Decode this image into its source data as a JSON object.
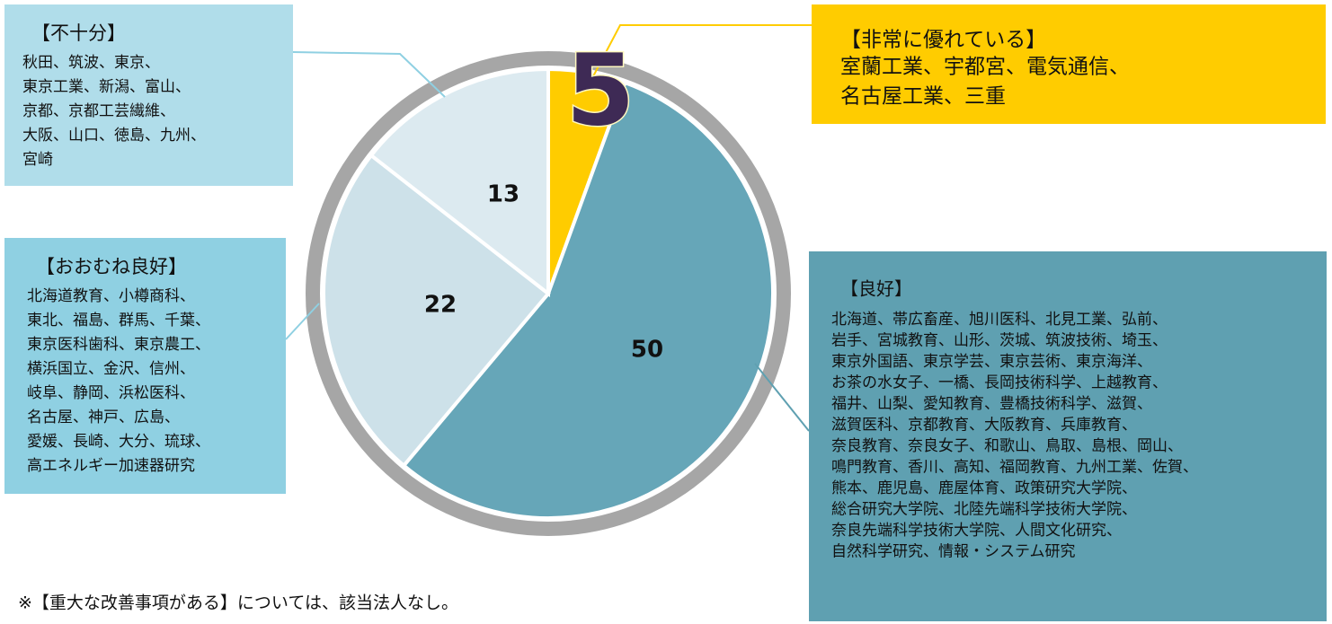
{
  "chart_data": {
    "type": "pie",
    "categories": [
      "【非常に優れている】",
      "【良好】",
      "【おおむね良好】",
      "【不十分】"
    ],
    "values": [
      5,
      50,
      22,
      13
    ],
    "colors": [
      "#FFCC00",
      "#66A6B8",
      "#CDE1E9",
      "#DCEAF0"
    ],
    "box_colors": [
      "#FFCC00",
      "#5FA0B1",
      "#8FD0E2",
      "#B0DDEA"
    ],
    "members": [
      [
        "室蘭工業、宇都宮、電気通信、",
        "名古屋工業、三重"
      ],
      [
        "北海道、帯広畜産、旭川医科、北見工業、弘前、",
        "岩手、宮城教育、山形、茨城、筑波技術、埼玉、",
        "東京外国語、東京学芸、東京芸術、東京海洋、",
        "お茶の水女子、一橋、長岡技術科学、上越教育、",
        "福井、山梨、愛知教育、豊橋技術科学、滋賀、",
        "滋賀医科、京都教育、大阪教育、兵庫教育、",
        "奈良教育、奈良女子、和歌山、鳥取、島根、岡山、",
        "鳴門教育、香川、高知、福岡教育、九州工業、佐賀、",
        "熊本、鹿児島、鹿屋体育、政策研究大学院、",
        "総合研究大学院、北陸先端科学技術大学院、",
        "奈良先端科学技術大学院、人間文化研究、",
        "自然科学研究、情報・システム研究"
      ],
      [
        "北海道教育、小樽商科、",
        "東北、福島、群馬、千葉、",
        "東京医科歯科、東京農工、",
        "横浜国立、金沢、信州、",
        "岐阜、静岡、浜松医科、",
        "名古屋、神戸、広島、",
        "愛媛、長崎、大分、琉球、",
        "高エネルギー加速器研究"
      ],
      [
        "秋田、筑波、東京、",
        "東京工業、新潟、富山、",
        "京都、京都工芸繊維、",
        "大阪、山口、徳島、九州、",
        "宮崎"
      ]
    ],
    "footnote": "※【重大な改善事項がある】については、該当法人なし。"
  }
}
